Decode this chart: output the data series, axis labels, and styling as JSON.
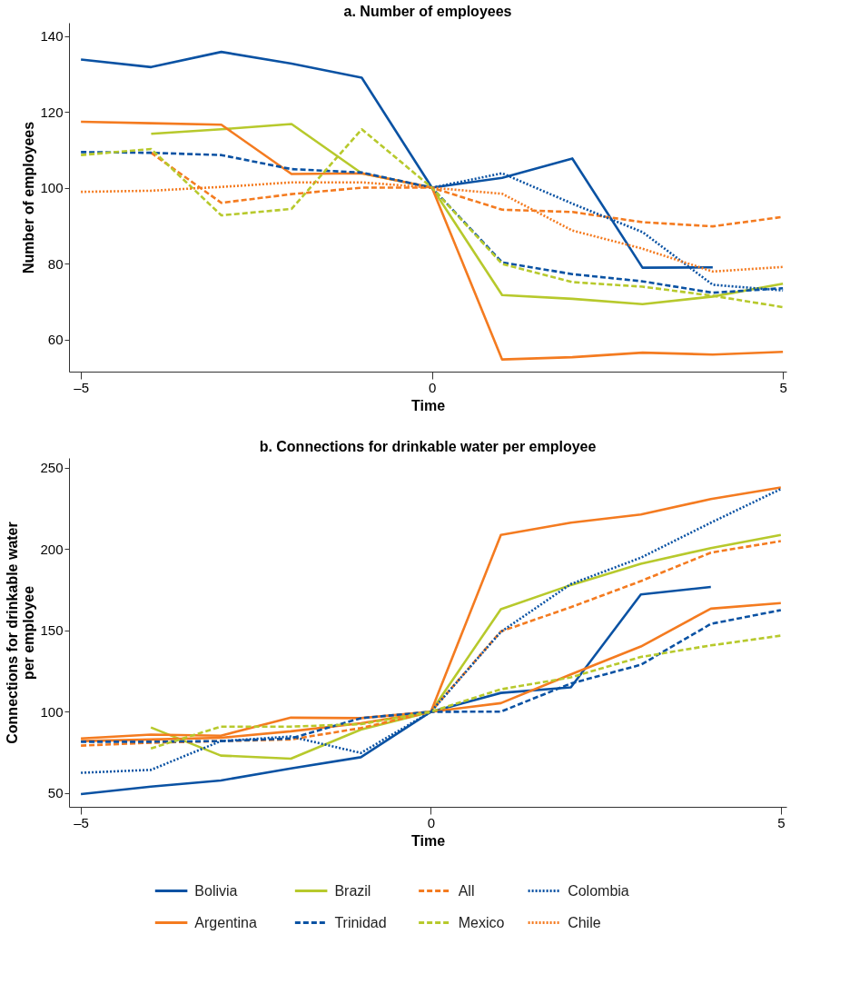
{
  "chart_data": [
    {
      "type": "line",
      "title": "a. Number of employees",
      "xlabel": "Time",
      "ylabel": "Number of employees",
      "x": [
        -5,
        -4,
        -3,
        -2,
        -1,
        0,
        1,
        2,
        3,
        4,
        5
      ],
      "xlim": [
        -5.17,
        5.05
      ],
      "ylim": [
        51.5,
        143.5
      ],
      "xticks": [
        {
          "value": -5,
          "label": "–5"
        },
        0,
        5
      ],
      "yticks": [
        60,
        80,
        100,
        120,
        140
      ],
      "grid": false,
      "legend": "bottom",
      "marker": "none",
      "series": [
        {
          "name": "Bolivia",
          "color": "#0a52a3",
          "line_style": "solid",
          "values": [
            133.8,
            131.8,
            135.8,
            132.7,
            129,
            100,
            102.6,
            107.7,
            78.9,
            79,
            null
          ]
        },
        {
          "name": "Brazil",
          "color": "#b7c92c",
          "line_style": "solid",
          "values": [
            null,
            114.2,
            115.4,
            116.8,
            103.8,
            100,
            71.7,
            70.7,
            69.3,
            71.3,
            74.7
          ]
        },
        {
          "name": "All",
          "color": "#f47b20",
          "line_style": "dashed",
          "values": [
            null,
            109.2,
            96,
            98.3,
            100,
            100,
            94.2,
            93.6,
            90.9,
            89.8,
            92.3
          ]
        },
        {
          "name": "Colombia",
          "color": "#0a52a3",
          "line_style": "dotted",
          "values": [
            null,
            null,
            null,
            null,
            null,
            100,
            103.8,
            95.8,
            88.3,
            74.4,
            72.9
          ]
        },
        {
          "name": "Argentina",
          "color": "#f47b20",
          "line_style": "solid",
          "values": [
            117.4,
            117,
            116.6,
            103.6,
            103.8,
            100,
            54.7,
            55.3,
            56.5,
            56,
            56.7
          ]
        },
        {
          "name": "Trinidad",
          "color": "#0a52a3",
          "line_style": "dashed",
          "values": [
            109.4,
            109.2,
            108.6,
            104.9,
            104,
            100,
            80.3,
            77.2,
            75.3,
            72.3,
            73.5
          ]
        },
        {
          "name": "Mexico",
          "color": "#b7c92c",
          "line_style": "dashed",
          "values": [
            108.6,
            110.2,
            92.7,
            94.4,
            115.4,
            100,
            79.9,
            75.1,
            73.9,
            71.5,
            68.5
          ]
        },
        {
          "name": "Chile",
          "color": "#f47b20",
          "line_style": "dotted",
          "values": [
            98.9,
            99.2,
            100.2,
            101.4,
            101.4,
            100,
            98.4,
            88.7,
            83.9,
            77.9,
            79.1
          ]
        }
      ]
    },
    {
      "type": "line",
      "title": "b. Connections for drinkable water per employee",
      "xlabel": "Time",
      "ylabel": "Connections for drinkable water\nper employee",
      "x": [
        -5,
        -4,
        -3,
        -2,
        -1,
        0,
        1,
        2,
        3,
        4,
        5
      ],
      "xlim": [
        -5.17,
        5.08
      ],
      "ylim": [
        41.6,
        256
      ],
      "xticks": [
        {
          "value": -5,
          "label": "–5"
        },
        0,
        5
      ],
      "yticks": [
        50,
        100,
        150,
        200,
        250
      ],
      "grid": false,
      "marker": "none",
      "series": [
        {
          "color": "#0a52a3",
          "line_style": "solid",
          "values": [
            49.4,
            54,
            57.8,
            65.2,
            72.1,
            100,
            111.6,
            115,
            172.1,
            176.7,
            null
          ]
        },
        {
          "color": "#b7c92c",
          "line_style": "solid",
          "values": [
            null,
            90.4,
            73.1,
            71.2,
            89.1,
            100,
            163,
            177.9,
            190.9,
            200.6,
            208.7
          ]
        },
        {
          "color": "#f47b20",
          "line_style": "dashed",
          "values": [
            79.2,
            81,
            82,
            83,
            90,
            100,
            149.4,
            164.3,
            180.3,
            197.8,
            204.9
          ]
        },
        {
          "color": "#0a52a3",
          "line_style": "dotted",
          "values": [
            62.5,
            64.3,
            82,
            84.8,
            74.7,
            100,
            149.1,
            178.5,
            194.7,
            216.2,
            236.9
          ]
        },
        {
          "color": "#f47b20",
          "line_style": "solid",
          "values": [
            83.6,
            86,
            85.3,
            96.4,
            96.1,
            100,
            208.7,
            216.2,
            221.2,
            230.7,
            237.9
          ]
        },
        {
          "color": "#0a52a3",
          "line_style": "dashed",
          "values": [
            81.6,
            81.6,
            82,
            83.6,
            96.1,
            100,
            100.1,
            117.4,
            128.9,
            154,
            162.5
          ]
        },
        {
          "color": "#b7c92c",
          "line_style": "dashed",
          "values": [
            null,
            77.5,
            90.9,
            90.9,
            92.4,
            100,
            113.8,
            121.2,
            133.7,
            140.8,
            146.8
          ]
        },
        {
          "color": "#f47b20",
          "line_style": "solid",
          "values": [
            82,
            83,
            84,
            88,
            93,
            100,
            105.3,
            123,
            140.1,
            163.4,
            166.8
          ]
        }
      ]
    }
  ]
}
